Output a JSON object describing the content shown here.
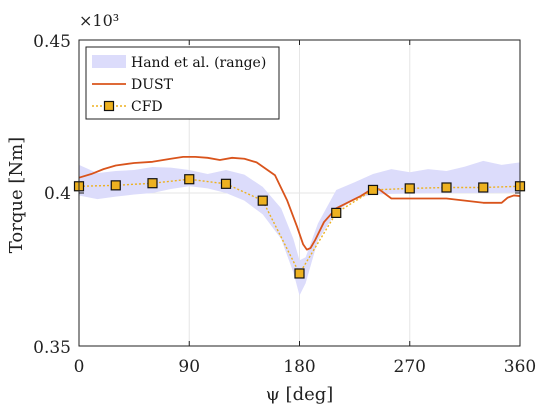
{
  "chart_data": {
    "type": "line",
    "xlabel": "ψ [deg]",
    "ylabel": "Torque [Nm]",
    "y_multiplier_label": "×10³",
    "xlim": [
      0,
      360
    ],
    "ylim": [
      0.35,
      0.45
    ],
    "x_ticks": [
      0,
      90,
      180,
      270,
      360
    ],
    "x_tick_labels": [
      "0",
      "90",
      "180",
      "270",
      "360"
    ],
    "y_ticks": [
      0.35,
      0.4,
      0.45
    ],
    "y_tick_labels": [
      "0.35",
      "0.4",
      "0.45"
    ],
    "grid": true,
    "legend_position": "top-left",
    "legend": [
      "Hand et al. (range)",
      "DUST",
      "CFD"
    ],
    "colors": {
      "range_fill": "#dcdcfb",
      "dust": "#d9541c",
      "cfd": "#edb120",
      "marker_edge": "#111111",
      "grid": "#e6e6e6",
      "axis": "#222222"
    },
    "series": [
      {
        "name": "Hand et al. (range)",
        "kind": "band",
        "x": [
          0,
          15,
          30,
          45,
          60,
          75,
          90,
          105,
          120,
          135,
          150,
          165,
          175,
          180,
          185,
          195,
          210,
          225,
          240,
          255,
          270,
          285,
          300,
          315,
          330,
          345,
          360
        ],
        "lower": [
          0.3992,
          0.398,
          0.3988,
          0.3995,
          0.4,
          0.4013,
          0.4022,
          0.4015,
          0.4,
          0.3975,
          0.393,
          0.385,
          0.374,
          0.3665,
          0.3705,
          0.3845,
          0.3938,
          0.3982,
          0.3995,
          0.3997,
          0.3998,
          0.3999,
          0.4,
          0.4,
          0.4,
          0.4001,
          0.4002
        ],
        "upper": [
          0.4092,
          0.4065,
          0.4072,
          0.4075,
          0.4085,
          0.4083,
          0.4075,
          0.4062,
          0.4075,
          0.406,
          0.402,
          0.395,
          0.385,
          0.378,
          0.379,
          0.39,
          0.401,
          0.4035,
          0.4062,
          0.4078,
          0.4068,
          0.4078,
          0.4072,
          0.4086,
          0.4105,
          0.4092,
          0.41
        ]
      },
      {
        "name": "DUST",
        "kind": "line",
        "x": [
          0,
          10,
          20,
          30,
          45,
          60,
          75,
          85,
          95,
          105,
          115,
          125,
          135,
          145,
          160,
          170,
          178,
          183,
          186,
          189,
          193,
          200,
          210,
          220,
          230,
          240,
          245,
          255,
          270,
          285,
          300,
          315,
          330,
          345,
          350,
          355,
          360
        ],
        "y": [
          0.405,
          0.4062,
          0.4078,
          0.409,
          0.4098,
          0.4102,
          0.4112,
          0.4118,
          0.4118,
          0.4115,
          0.4108,
          0.4115,
          0.4112,
          0.41,
          0.4058,
          0.3975,
          0.389,
          0.3832,
          0.3815,
          0.382,
          0.3848,
          0.3905,
          0.395,
          0.397,
          0.399,
          0.4015,
          0.4012,
          0.3982,
          0.3982,
          0.3982,
          0.3982,
          0.3975,
          0.3968,
          0.3968,
          0.3985,
          0.3992,
          0.399
        ]
      },
      {
        "name": "CFD",
        "kind": "line-markers",
        "x": [
          0,
          30,
          60,
          90,
          120,
          150,
          180,
          210,
          240,
          270,
          300,
          330,
          360
        ],
        "y": [
          0.4022,
          0.4025,
          0.4032,
          0.4045,
          0.403,
          0.3975,
          0.3737,
          0.3935,
          0.401,
          0.4015,
          0.4018,
          0.4018,
          0.4022
        ]
      }
    ]
  }
}
